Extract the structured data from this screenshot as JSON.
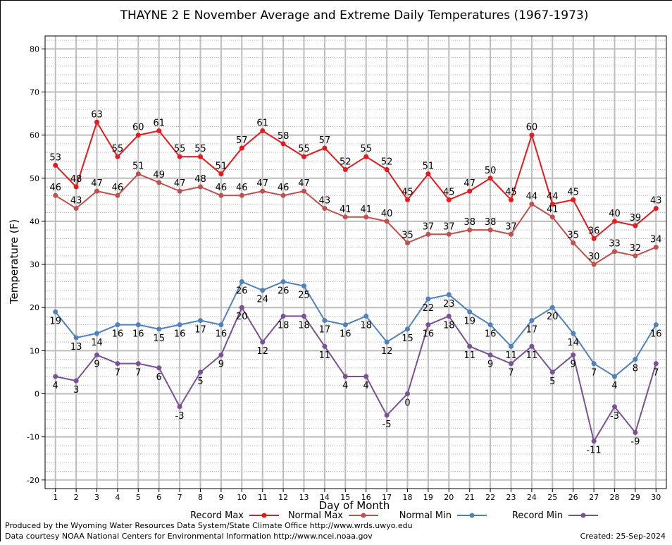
{
  "chart_data": {
    "type": "line",
    "title": "THAYNE 2 E November Average and Extreme Daily Temperatures (1967-1973)",
    "xlabel": "Day of Month",
    "ylabel": "Temperature (F)",
    "x": [
      1,
      2,
      3,
      4,
      5,
      6,
      7,
      8,
      9,
      10,
      11,
      12,
      13,
      14,
      15,
      16,
      17,
      18,
      19,
      20,
      21,
      22,
      23,
      24,
      25,
      26,
      27,
      28,
      29,
      30
    ],
    "xlim": [
      0.5,
      30.5
    ],
    "ylim": [
      -22,
      83
    ],
    "yticks": [
      -20,
      -10,
      0,
      10,
      20,
      30,
      40,
      50,
      60,
      70,
      80
    ],
    "grid": true,
    "legend_position": "bottom",
    "series": [
      {
        "name": "Record Max",
        "color": "#e41a1c",
        "label_pos": "above",
        "values": [
          53,
          48,
          63,
          55,
          60,
          61,
          55,
          55,
          51,
          57,
          61,
          58,
          55,
          57,
          52,
          55,
          52,
          45,
          51,
          45,
          47,
          50,
          45,
          60,
          44,
          45,
          36,
          40,
          39,
          43
        ]
      },
      {
        "name": "Normal Max",
        "color": "#c0504d",
        "label_pos": "above",
        "values": [
          46,
          43,
          47,
          46,
          51,
          49,
          47,
          48,
          46,
          46,
          47,
          46,
          47,
          43,
          41,
          41,
          40,
          35,
          37,
          37,
          38,
          38,
          37,
          44,
          41,
          35,
          30,
          33,
          32,
          34
        ]
      },
      {
        "name": "Normal Min",
        "color": "#4f81bd",
        "label_pos": "below",
        "values": [
          19,
          13,
          14,
          16,
          16,
          15,
          16,
          17,
          16,
          26,
          24,
          26,
          25,
          17,
          16,
          18,
          12,
          15,
          22,
          23,
          19,
          16,
          11,
          17,
          20,
          14,
          7,
          4,
          8,
          16
        ]
      },
      {
        "name": "Record Min",
        "color": "#7a5195",
        "label_pos": "below",
        "values": [
          4,
          3,
          9,
          7,
          7,
          6,
          -3,
          5,
          9,
          20,
          12,
          18,
          18,
          11,
          4,
          4,
          -5,
          0,
          16,
          18,
          11,
          9,
          7,
          11,
          5,
          9,
          -11,
          -3,
          -9,
          7
        ]
      }
    ]
  },
  "footer": {
    "produced_by": "Produced by the Wyoming Water Resources Data System/State Climate Office http://www.wrds.uwyo.edu",
    "courtesy": "Data courtesy NOAA National Centers for Environmental Information http://www.ncei.noaa.gov",
    "created": "Created:  25-Sep-2024"
  }
}
